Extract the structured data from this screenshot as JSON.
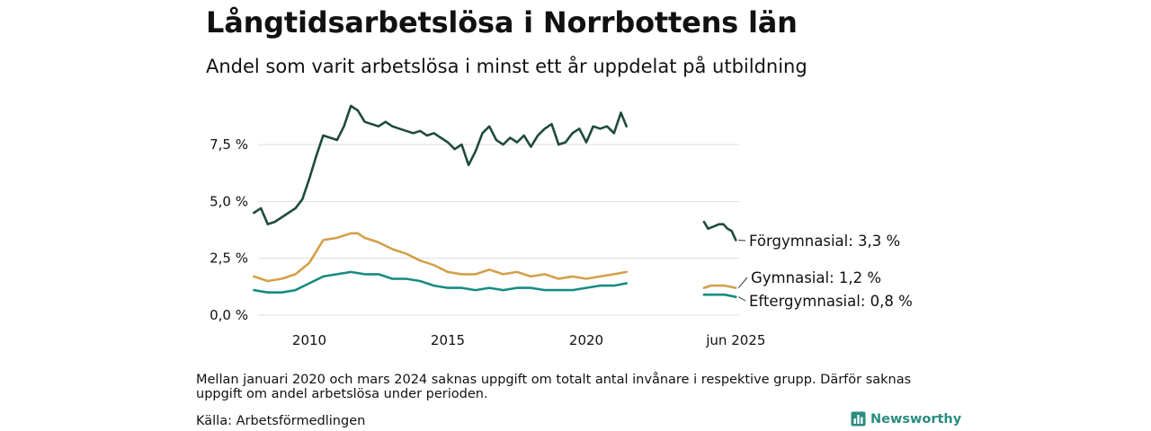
{
  "title": "Långtidsarbetslösa i Norrbottens län",
  "subtitle": "Andel som varit arbetslösa i minst ett år uppdelat på utbildning",
  "note": "Mellan januari 2020 och mars 2024 saknas uppgift om totalt antal invånare i respektive grupp. Därför saknas uppgift om andel arbetslösa under perioden.",
  "source": "Källa: Arbetsförmedlingen",
  "brand": {
    "name": "Newsworthy",
    "icon": "bar-chart-logo-icon"
  },
  "chart_data": {
    "type": "line",
    "ylim": [
      0,
      9.5
    ],
    "gridlines": true,
    "y_ticks": [
      {
        "value": 0,
        "label": "0,0 %"
      },
      {
        "value": 2.5,
        "label": "2,5 %"
      },
      {
        "value": 5,
        "label": "5,0 %"
      },
      {
        "value": 7.5,
        "label": "7,5 %"
      }
    ],
    "x_ticks": [
      {
        "value": 2010,
        "label": "2010"
      },
      {
        "value": 2015,
        "label": "2015"
      },
      {
        "value": 2020,
        "label": "2020"
      },
      {
        "value": 2025.4,
        "label": "jun 2025"
      }
    ],
    "series": [
      {
        "name": "Förgymnasial",
        "end_label": "Förgymnasial: 3,3 %",
        "color": "#1e4a3f",
        "segments": [
          [
            [
              2008.0,
              4.5
            ],
            [
              2008.25,
              4.7
            ],
            [
              2008.5,
              4.0
            ],
            [
              2008.75,
              4.1
            ],
            [
              2009.0,
              4.3
            ],
            [
              2009.25,
              4.5
            ],
            [
              2009.5,
              4.7
            ],
            [
              2009.75,
              5.1
            ],
            [
              2010.0,
              6.0
            ],
            [
              2010.25,
              7.0
            ],
            [
              2010.5,
              7.9
            ],
            [
              2010.75,
              7.8
            ],
            [
              2011.0,
              7.7
            ],
            [
              2011.25,
              8.3
            ],
            [
              2011.5,
              9.2
            ],
            [
              2011.75,
              9.0
            ],
            [
              2012.0,
              8.5
            ],
            [
              2012.25,
              8.4
            ],
            [
              2012.5,
              8.3
            ],
            [
              2012.75,
              8.5
            ],
            [
              2013.0,
              8.3
            ],
            [
              2013.25,
              8.2
            ],
            [
              2013.5,
              8.1
            ],
            [
              2013.75,
              8.0
            ],
            [
              2014.0,
              8.1
            ],
            [
              2014.25,
              7.9
            ],
            [
              2014.5,
              8.0
            ],
            [
              2014.75,
              7.8
            ],
            [
              2015.0,
              7.6
            ],
            [
              2015.25,
              7.3
            ],
            [
              2015.5,
              7.5
            ],
            [
              2015.75,
              6.6
            ],
            [
              2016.0,
              7.2
            ],
            [
              2016.25,
              8.0
            ],
            [
              2016.5,
              8.3
            ],
            [
              2016.75,
              7.7
            ],
            [
              2017.0,
              7.5
            ],
            [
              2017.25,
              7.8
            ],
            [
              2017.5,
              7.6
            ],
            [
              2017.75,
              7.9
            ],
            [
              2018.0,
              7.4
            ],
            [
              2018.25,
              7.9
            ],
            [
              2018.5,
              8.2
            ],
            [
              2018.75,
              8.4
            ],
            [
              2019.0,
              7.5
            ],
            [
              2019.25,
              7.6
            ],
            [
              2019.5,
              8.0
            ],
            [
              2019.75,
              8.2
            ],
            [
              2020.0,
              7.6
            ],
            [
              2020.25,
              8.3
            ],
            [
              2020.5,
              8.2
            ],
            [
              2020.75,
              8.3
            ],
            [
              2021.0,
              8.0
            ],
            [
              2021.25,
              8.9
            ],
            [
              2021.45,
              8.3
            ]
          ],
          [
            [
              2024.25,
              4.1
            ],
            [
              2024.4,
              3.8
            ],
            [
              2024.6,
              3.9
            ],
            [
              2024.8,
              4.0
            ],
            [
              2024.95,
              4.0
            ],
            [
              2025.1,
              3.8
            ],
            [
              2025.25,
              3.7
            ],
            [
              2025.4,
              3.3
            ]
          ]
        ]
      },
      {
        "name": "Gymnasial",
        "end_label": "Gymnasial: 1,2 %",
        "color": "#d4a04a",
        "segments": [
          [
            [
              2008.0,
              1.7
            ],
            [
              2008.5,
              1.5
            ],
            [
              2009.0,
              1.6
            ],
            [
              2009.5,
              1.8
            ],
            [
              2010.0,
              2.3
            ],
            [
              2010.5,
              3.3
            ],
            [
              2011.0,
              3.4
            ],
            [
              2011.5,
              3.6
            ],
            [
              2011.75,
              3.6
            ],
            [
              2012.0,
              3.4
            ],
            [
              2012.5,
              3.2
            ],
            [
              2013.0,
              2.9
            ],
            [
              2013.5,
              2.7
            ],
            [
              2014.0,
              2.4
            ],
            [
              2014.5,
              2.2
            ],
            [
              2015.0,
              1.9
            ],
            [
              2015.5,
              1.8
            ],
            [
              2016.0,
              1.8
            ],
            [
              2016.5,
              2.0
            ],
            [
              2017.0,
              1.8
            ],
            [
              2017.5,
              1.9
            ],
            [
              2018.0,
              1.7
            ],
            [
              2018.5,
              1.8
            ],
            [
              2019.0,
              1.6
            ],
            [
              2019.5,
              1.7
            ],
            [
              2020.0,
              1.6
            ],
            [
              2020.5,
              1.7
            ],
            [
              2021.0,
              1.8
            ],
            [
              2021.45,
              1.9
            ]
          ],
          [
            [
              2024.25,
              1.2
            ],
            [
              2024.5,
              1.3
            ],
            [
              2025.0,
              1.3
            ],
            [
              2025.4,
              1.2
            ]
          ]
        ]
      },
      {
        "name": "Eftergymnasial",
        "end_label": "Eftergymnasial: 0,8 %",
        "color": "#168c82",
        "segments": [
          [
            [
              2008.0,
              1.1
            ],
            [
              2008.5,
              1.0
            ],
            [
              2009.0,
              1.0
            ],
            [
              2009.5,
              1.1
            ],
            [
              2010.0,
              1.4
            ],
            [
              2010.5,
              1.7
            ],
            [
              2011.0,
              1.8
            ],
            [
              2011.5,
              1.9
            ],
            [
              2012.0,
              1.8
            ],
            [
              2012.5,
              1.8
            ],
            [
              2013.0,
              1.6
            ],
            [
              2013.5,
              1.6
            ],
            [
              2014.0,
              1.5
            ],
            [
              2014.5,
              1.3
            ],
            [
              2015.0,
              1.2
            ],
            [
              2015.5,
              1.2
            ],
            [
              2016.0,
              1.1
            ],
            [
              2016.5,
              1.2
            ],
            [
              2017.0,
              1.1
            ],
            [
              2017.5,
              1.2
            ],
            [
              2018.0,
              1.2
            ],
            [
              2018.5,
              1.1
            ],
            [
              2019.0,
              1.1
            ],
            [
              2019.5,
              1.1
            ],
            [
              2020.0,
              1.2
            ],
            [
              2020.5,
              1.3
            ],
            [
              2021.0,
              1.3
            ],
            [
              2021.45,
              1.4
            ]
          ],
          [
            [
              2024.25,
              0.9
            ],
            [
              2024.5,
              0.9
            ],
            [
              2025.0,
              0.9
            ],
            [
              2025.4,
              0.8
            ]
          ]
        ]
      }
    ]
  }
}
